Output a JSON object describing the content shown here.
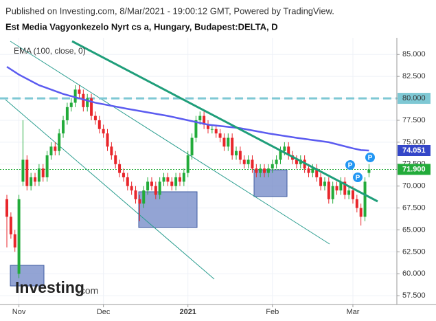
{
  "chart_data": {
    "type": "candlestick",
    "header": "Published on Investing.com, 8/Mar/2021 - 19:00:12 GMT, Powered by TradingView.",
    "title": "Est Media Vagyonkezelo Nyrt cs a, Hungary, Budapest:DELTA, D",
    "logo": {
      "main": "Investing",
      "suffix": ".com"
    },
    "categories": [
      null,
      null,
      null,
      "Nov",
      null,
      null,
      null,
      null,
      null,
      null,
      null,
      null,
      null,
      null,
      null,
      null,
      null,
      null,
      null,
      null,
      null,
      null,
      null,
      null,
      "Dec",
      null,
      null,
      null,
      null,
      null,
      null,
      null,
      null,
      null,
      null,
      null,
      null,
      null,
      null,
      null,
      null,
      null,
      null,
      null,
      null,
      "2021",
      null,
      null,
      null,
      null,
      null,
      null,
      null,
      null,
      null,
      null,
      null,
      null,
      null,
      null,
      null,
      null,
      null,
      null,
      null,
      null,
      "Feb",
      null,
      null,
      null,
      null,
      null,
      null,
      null,
      null,
      null,
      null,
      null,
      null,
      null,
      null,
      null,
      null,
      null,
      null,
      null,
      "Mar",
      null,
      null,
      null,
      null
    ],
    "open": [
      68.5,
      66.5,
      64.5,
      60.0,
      70.5,
      73.0,
      70.0,
      71.0,
      70.5,
      72.0,
      71.0,
      73.5,
      74.5,
      74.0,
      76.0,
      77.5,
      79.0,
      79.5,
      81.0,
      80.5,
      79.0,
      80.0,
      78.0,
      77.5,
      76.5,
      76.0,
      74.5,
      73.5,
      72.5,
      71.5,
      71.0,
      70.0,
      69.5,
      68.5,
      68.0,
      69.5,
      70.5,
      70.0,
      69.0,
      70.5,
      71.0,
      70.5,
      70.0,
      71.0,
      70.5,
      71.5,
      73.5,
      75.5,
      77.5,
      78.0,
      77.0,
      76.5,
      76.5,
      76.0,
      75.5,
      74.5,
      75.5,
      73.5,
      74.0,
      73.0,
      72.5,
      73.0,
      72.0,
      71.5,
      72.0,
      71.5,
      72.0,
      72.5,
      73.0,
      74.0,
      74.5,
      73.5,
      73.0,
      72.5,
      73.0,
      72.0,
      71.5,
      72.0,
      71.0,
      70.0,
      70.5,
      68.5,
      70.0,
      69.5,
      70.5,
      69.0,
      69.5,
      68.5,
      67.5,
      66.5,
      71.5
    ],
    "high": [
      69.0,
      67.0,
      65.0,
      69.0,
      77.5,
      73.5,
      71.5,
      71.5,
      72.5,
      72.5,
      74.0,
      75.0,
      75.0,
      76.5,
      78.0,
      79.5,
      80.0,
      81.5,
      81.5,
      81.0,
      80.5,
      80.5,
      78.5,
      78.0,
      77.0,
      76.5,
      75.0,
      74.0,
      73.0,
      72.0,
      71.5,
      70.5,
      70.0,
      69.0,
      70.0,
      71.0,
      71.0,
      70.5,
      71.0,
      71.5,
      71.5,
      71.0,
      71.5,
      71.5,
      72.0,
      74.0,
      76.0,
      78.0,
      78.5,
      78.5,
      77.5,
      77.0,
      77.0,
      76.5,
      76.0,
      76.0,
      76.0,
      74.5,
      74.5,
      73.5,
      73.5,
      73.5,
      72.5,
      72.5,
      72.5,
      72.5,
      73.0,
      73.5,
      74.5,
      75.0,
      75.0,
      74.0,
      73.5,
      73.5,
      73.5,
      72.5,
      72.5,
      72.5,
      71.5,
      71.0,
      71.0,
      70.5,
      70.5,
      71.0,
      71.0,
      70.0,
      70.0,
      69.0,
      68.0,
      71.0,
      72.5
    ],
    "low": [
      63.0,
      64.0,
      62.5,
      59.5,
      70.0,
      69.5,
      69.5,
      70.0,
      70.0,
      70.5,
      70.5,
      73.0,
      73.5,
      73.5,
      75.5,
      77.0,
      78.5,
      79.0,
      80.0,
      78.5,
      78.5,
      77.5,
      77.0,
      76.0,
      75.5,
      74.0,
      73.0,
      72.0,
      71.0,
      70.5,
      69.5,
      69.0,
      68.0,
      66.0,
      67.5,
      69.0,
      69.5,
      68.5,
      68.5,
      70.0,
      70.0,
      69.5,
      69.5,
      70.0,
      70.0,
      71.0,
      73.0,
      75.0,
      77.0,
      76.5,
      76.0,
      76.0,
      75.5,
      75.0,
      74.0,
      74.0,
      73.0,
      73.0,
      72.5,
      72.0,
      72.0,
      71.5,
      71.0,
      71.0,
      71.0,
      71.0,
      71.5,
      72.0,
      72.5,
      73.5,
      73.0,
      72.5,
      72.0,
      72.0,
      71.5,
      71.0,
      71.0,
      70.5,
      69.5,
      69.5,
      68.0,
      68.0,
      69.0,
      69.0,
      68.5,
      68.5,
      68.0,
      67.0,
      65.5,
      66.0,
      71.0
    ],
    "close": [
      66.5,
      64.5,
      63.0,
      68.5,
      73.0,
      70.0,
      71.0,
      70.5,
      72.0,
      71.0,
      73.5,
      74.5,
      74.0,
      76.0,
      77.5,
      79.0,
      79.5,
      81.0,
      80.5,
      79.0,
      80.0,
      78.0,
      77.5,
      76.5,
      76.0,
      74.5,
      73.5,
      72.5,
      71.5,
      71.0,
      70.0,
      69.5,
      68.5,
      68.0,
      69.5,
      70.5,
      70.0,
      69.0,
      70.5,
      71.0,
      70.5,
      70.0,
      71.0,
      70.5,
      71.5,
      73.5,
      75.5,
      77.5,
      78.0,
      77.0,
      76.5,
      76.5,
      76.0,
      75.5,
      74.5,
      75.5,
      73.5,
      74.0,
      73.0,
      72.5,
      73.0,
      72.0,
      71.5,
      72.0,
      71.5,
      72.0,
      72.5,
      73.0,
      74.0,
      74.5,
      73.5,
      73.0,
      72.5,
      73.0,
      72.0,
      71.5,
      72.0,
      71.0,
      70.0,
      70.5,
      68.5,
      70.0,
      69.5,
      70.5,
      69.0,
      69.5,
      68.5,
      67.5,
      66.5,
      70.5,
      71.9
    ],
    "up_color": "#22ab3a",
    "down_color": "#e8262b",
    "ema": {
      "name": "EMA (100, close, 0)",
      "color": "#5b5bf0",
      "x": [
        0,
        3,
        8,
        14,
        18,
        22,
        30,
        40,
        50,
        58,
        65,
        72,
        80,
        86,
        88,
        90
      ],
      "values": [
        83.6,
        82.7,
        81.5,
        80.5,
        80.0,
        79.5,
        78.8,
        78.0,
        77.0,
        76.6,
        76.0,
        75.5,
        75.0,
        74.3,
        74.1,
        74.051
      ],
      "last_label": {
        "value": 74.051,
        "label": "74.051"
      }
    },
    "last_price": {
      "value": 71.9,
      "label": "71.900",
      "color": "#22ab3a"
    },
    "hline": {
      "value": 80,
      "color": "#7ec8d4"
    },
    "ylim": [
      56.5,
      86.9
    ],
    "yticks": [
      {
        "value": 57.5,
        "label": "57.500"
      },
      {
        "value": 60,
        "label": "60.000"
      },
      {
        "value": 62.5,
        "label": "62.500"
      },
      {
        "value": 65,
        "label": "65.000"
      },
      {
        "value": 67.5,
        "label": "67.500"
      },
      {
        "value": 70,
        "label": "70.000"
      },
      {
        "value": 72.5,
        "label": "72.500"
      },
      {
        "value": 75,
        "label": "75.000"
      },
      {
        "value": 77.5,
        "label": "77.500"
      },
      {
        "value": 80,
        "label": "80.000"
      },
      {
        "value": 82.5,
        "label": "82.500"
      },
      {
        "value": 85,
        "label": "85.000"
      }
    ],
    "grid": true
  }
}
